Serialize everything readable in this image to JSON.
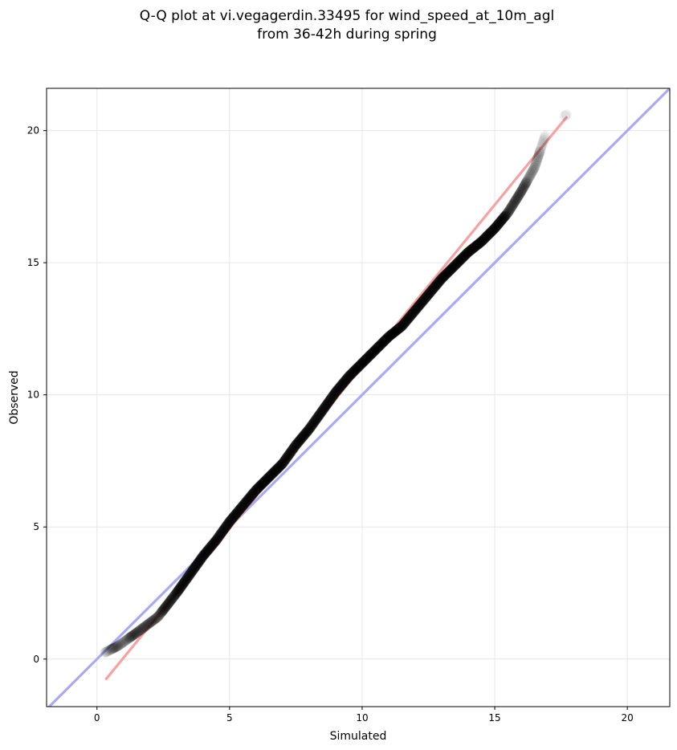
{
  "chart_data": {
    "type": "scatter",
    "title_lines": [
      "Q-Q plot at vi.vegagerdin.33495 for wind_speed_at_10m_agl",
      "from 36-42h during spring"
    ],
    "xlabel": "Simulated",
    "ylabel": "Observed",
    "xlim": [
      -1.9,
      21.6
    ],
    "ylim": [
      -1.8,
      21.6
    ],
    "x_ticks": [
      0,
      5,
      10,
      15,
      20
    ],
    "y_ticks": [
      0,
      5,
      10,
      15,
      20
    ],
    "x_tick_labels": [
      "0",
      "5",
      "10",
      "15",
      "20"
    ],
    "y_tick_labels": [
      "0",
      "5",
      "10",
      "15",
      "20"
    ],
    "grid": true,
    "identity_line": {
      "color": "#aaaaf0"
    },
    "fit_line": {
      "color": "#f4a3a3",
      "x": [
        0.35,
        17.7
      ],
      "y": [
        -0.75,
        20.5
      ]
    },
    "marker_color": "#000000",
    "quantile_curve": {
      "x": [
        0.3,
        0.8,
        1.5,
        2.3,
        3.0,
        3.5,
        4.0,
        4.5,
        5.0,
        5.5,
        6.0,
        6.5,
        7.0,
        7.5,
        8.0,
        8.5,
        9.0,
        9.5,
        10.0,
        10.5,
        11.0,
        11.5,
        12.0,
        12.5,
        13.0,
        13.5,
        14.0,
        14.5,
        15.0,
        15.5,
        16.0,
        16.5,
        16.9
      ],
      "y": [
        0.25,
        0.5,
        1.0,
        1.6,
        2.5,
        3.2,
        3.9,
        4.5,
        5.2,
        5.8,
        6.4,
        6.9,
        7.4,
        8.1,
        8.7,
        9.4,
        10.1,
        10.7,
        11.2,
        11.7,
        12.2,
        12.6,
        13.2,
        13.8,
        14.4,
        14.9,
        15.4,
        15.8,
        16.3,
        16.9,
        17.7,
        18.6,
        19.8
      ]
    },
    "n_points": 520,
    "tail_points": [
      {
        "x": 17.65,
        "y": 20.55
      },
      {
        "x": 17.7,
        "y": 20.6
      }
    ]
  }
}
